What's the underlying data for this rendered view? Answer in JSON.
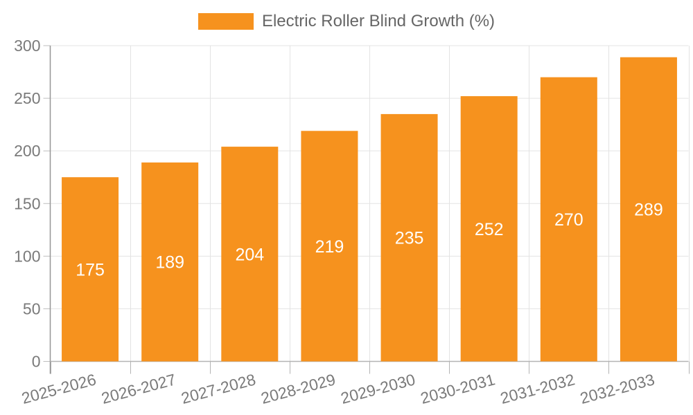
{
  "legend": {
    "label": "Electric Roller Blind Growth (%)",
    "swatch_color": "#F6921E"
  },
  "chart_data": {
    "type": "bar",
    "title": "",
    "xlabel": "",
    "ylabel": "",
    "categories": [
      "2025-2026",
      "2026-2027",
      "2027-2028",
      "2028-2029",
      "2029-2030",
      "2030-2031",
      "2031-2032",
      "2032-2033"
    ],
    "series": [
      {
        "name": "Electric Roller Blind Growth (%)",
        "values": [
          175,
          189,
          204,
          219,
          235,
          252,
          270,
          289
        ]
      }
    ],
    "bar_labels_shown": true,
    "ylim": [
      0,
      300
    ],
    "yticks": [
      0,
      50,
      100,
      150,
      200,
      250,
      300
    ],
    "grid": true,
    "x_label_rotation_deg": -15,
    "legend_position": "top-center",
    "colors": {
      "bar": "#F6921E",
      "bar_label": "#FFFFFF",
      "grid_line": "#E3E3E3",
      "y_axis_line": "#969696",
      "x_axis_line": "#B3B3B3",
      "tick_mark": "#BDBDBD",
      "tick_label": "#7A7A7A",
      "legend_text": "#666666",
      "background": "#FFFFFF"
    }
  }
}
